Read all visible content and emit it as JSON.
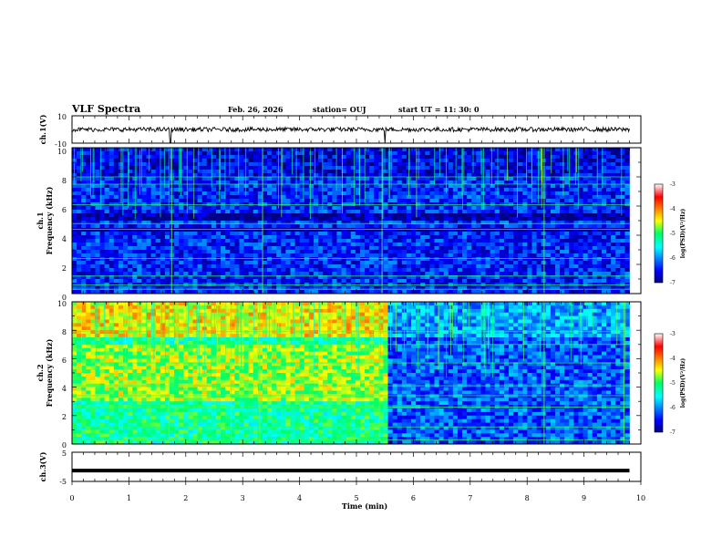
{
  "header": {
    "title": "VLF Spectra",
    "date": "Feb. 26, 2026",
    "station": "station= OUJ",
    "start_ut": "start  UT =   11: 30: 0"
  },
  "chart_data": {
    "type": "heatmap",
    "title": "VLF Spectra",
    "xlabel": "Time (min)",
    "xlim": [
      0,
      10
    ],
    "x_ticks": [
      "0",
      "1",
      "2",
      "3",
      "4",
      "5",
      "6",
      "7",
      "8",
      "9",
      "10"
    ],
    "data_end_min": 9.8,
    "panels": [
      {
        "name": "ch.1 waveform",
        "ylabel": "ch.1(V)",
        "ylim": [
          -10,
          10
        ],
        "y_ticks": [
          "10",
          "-10"
        ],
        "mean_level_v": 0,
        "spike_times_min": [
          1.73,
          5.5
        ]
      },
      {
        "name": "ch.1 spectrogram",
        "ylabel_top": "ch.1",
        "ylabel": "Frequency (kHz)",
        "ylim": [
          0,
          10
        ],
        "y_ticks": [
          "0",
          "2",
          "4",
          "6",
          "8",
          "10"
        ],
        "colorbar": {
          "label": "log(PSD)(V²/Hz)",
          "range": [
            -7,
            -3
          ],
          "ticks": [
            "-3",
            "-4",
            "-5",
            "-6",
            "-7"
          ]
        },
        "narrowband_lines_khz": [
          0.3,
          0.6,
          1.2,
          2.4,
          4.4,
          4.8,
          6.1,
          7.5,
          8.0
        ],
        "background_psd_log": -6.4
      },
      {
        "name": "ch.2 spectrogram",
        "ylabel_top": "ch.2",
        "ylabel": "Frequency (kHz)",
        "ylim": [
          0,
          10
        ],
        "y_ticks": [
          "0",
          "2",
          "4",
          "6",
          "8",
          "10"
        ],
        "colorbar": {
          "label": "log(PSD)(V²/Hz)",
          "range": [
            -7,
            -3
          ],
          "ticks": [
            "-3",
            "-4",
            "-5",
            "-6",
            "-7"
          ]
        },
        "level_change_time_min": 5.5,
        "background_psd_log_before": -5.2,
        "background_psd_log_after": -6.2
      },
      {
        "name": "ch.3 waveform",
        "ylabel": "ch.3(V)",
        "ylim": [
          -5,
          5
        ],
        "y_ticks": [
          "5",
          "-5"
        ],
        "mean_level_v": -1.3
      }
    ]
  }
}
